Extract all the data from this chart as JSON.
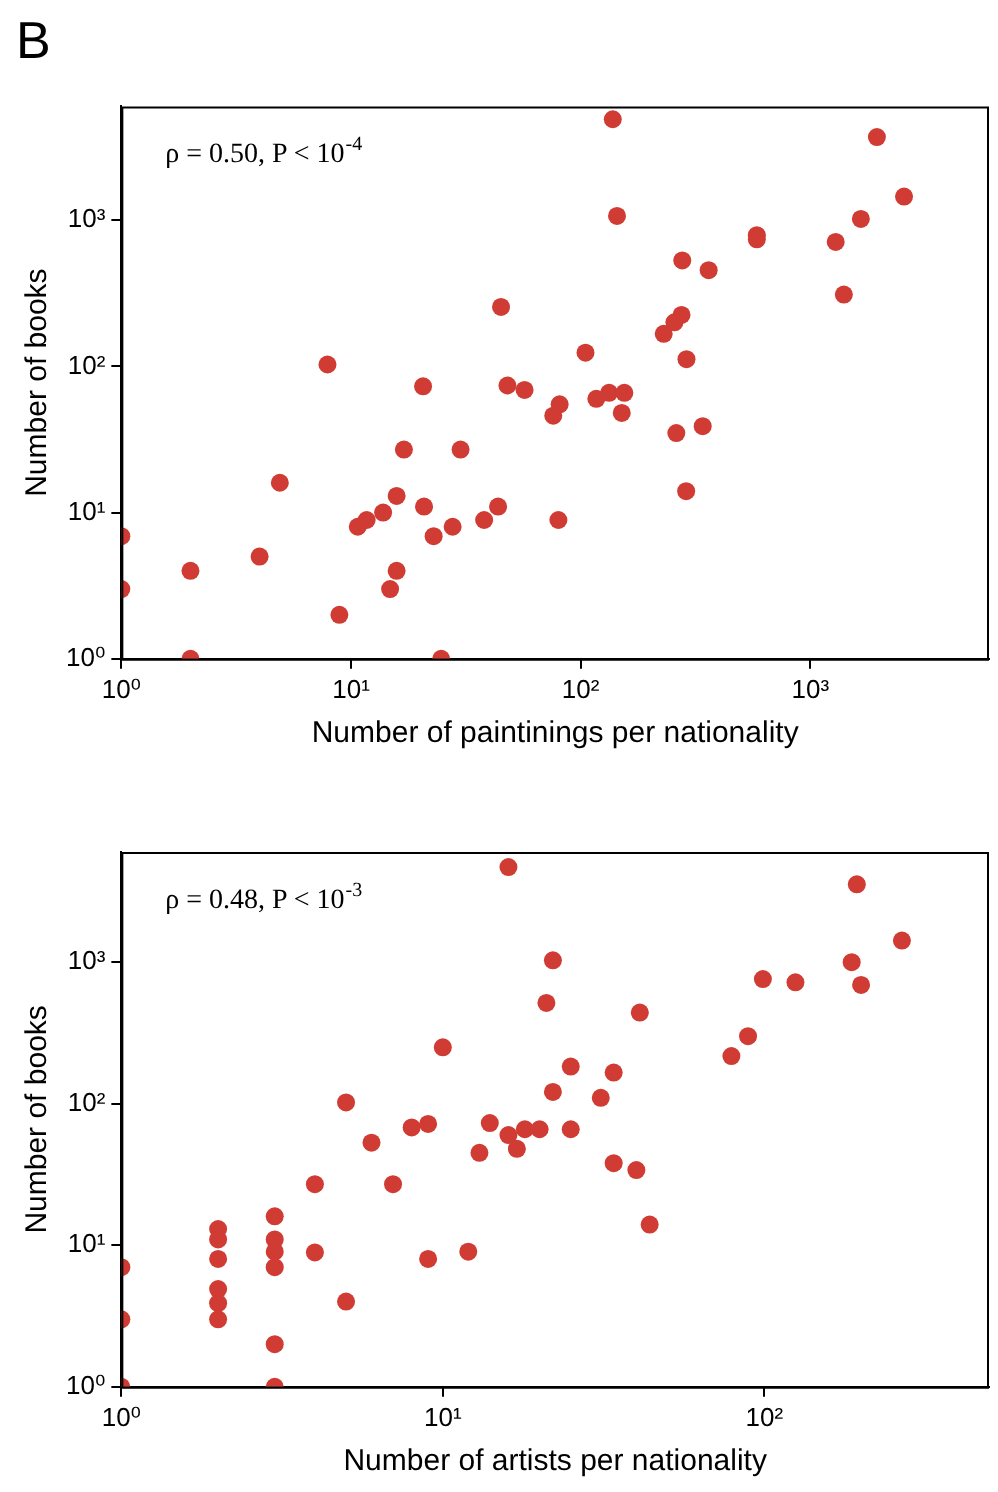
{
  "chart_data": [
    {
      "type": "scatter",
      "title": "B",
      "xlabel": "Number of paintinings per nationality",
      "ylabel": "Number of books",
      "annotations": [
        "ρ = 0.50, P < 10$^{-4}$"
      ],
      "log": "xy",
      "grid": false,
      "marker": "circle",
      "legend": false,
      "xlim": [
        1,
        6000
      ],
      "ylim": [
        1,
        6000
      ],
      "xticks": [
        {
          "value": 1,
          "label": "10⁰"
        },
        {
          "value": 10,
          "label": "10¹"
        },
        {
          "value": 100,
          "label": "10²"
        },
        {
          "value": 1000,
          "label": "10³"
        }
      ],
      "yticks": [
        {
          "value": 1,
          "label": "10⁰"
        },
        {
          "value": 10,
          "label": "10¹"
        },
        {
          "value": 100,
          "label": "10²"
        },
        {
          "value": 1000,
          "label": "10³"
        }
      ],
      "series": [
        {
          "color": "#d03b33",
          "x": [
            138,
            1950,
            2560,
            144,
            1660,
            585,
            585,
            1290,
            277,
            361,
            1400,
            45,
            275,
            256,
            230,
            7.9,
            105,
            289,
            20.6,
            48,
            57,
            117,
            133,
            155,
            81,
            76,
            151,
            261,
            340,
            288,
            4.9,
            17,
            30,
            15.8,
            20.8,
            43.7,
            13.8,
            11.7,
            10.7,
            38,
            80,
            27.7,
            22.9,
            1,
            4,
            2,
            15.8,
            1,
            14.8,
            8.9,
            2,
            24.7
          ],
          "values": [
            4900,
            3700,
            1450,
            1070,
            1020,
            790,
            740,
            710,
            530,
            455,
            310,
            255,
            225,
            200,
            167,
            103,
            124,
            112,
            73,
            74,
            69,
            60,
            66,
            66,
            55,
            46,
            48,
            35,
            39,
            14,
            16,
            27,
            27,
            13,
            11,
            11,
            10,
            8.9,
            8,
            8.9,
            8.9,
            8,
            6.9,
            6.9,
            5,
            4,
            4,
            3,
            3,
            2,
            1,
            1
          ]
        }
      ]
    },
    {
      "type": "scatter",
      "xlabel": "Number of artists per nationality",
      "ylabel": "Number of books",
      "annotations": [
        "ρ = 0.48, P < 10$^{-3}$"
      ],
      "log": "xy",
      "grid": false,
      "marker": "circle",
      "legend": false,
      "xlim": [
        1,
        500
      ],
      "ylim": [
        1,
        6000
      ],
      "xticks": [
        {
          "value": 1,
          "label": "10⁰"
        },
        {
          "value": 10,
          "label": "10¹"
        },
        {
          "value": 100,
          "label": "10²"
        }
      ],
      "yticks": [
        {
          "value": 1,
          "label": "10⁰"
        },
        {
          "value": 10,
          "label": "10¹"
        },
        {
          "value": 100,
          "label": "10²"
        },
        {
          "value": 1000,
          "label": "10³"
        }
      ],
      "series": [
        {
          "color": "#d03b33",
          "x": [
            16,
            194,
            268,
            22,
            187,
            99,
            125,
            200,
            21,
            41,
            89,
            79,
            10,
            25,
            34,
            22,
            31,
            5,
            14,
            9,
            8,
            18,
            20,
            25,
            16,
            17,
            13,
            6,
            34,
            40,
            4,
            7,
            44,
            3,
            2,
            2,
            3,
            3,
            3,
            4,
            9,
            12,
            2,
            1,
            2,
            2,
            2,
            5,
            1,
            3,
            1,
            3
          ],
          "values": [
            4700,
            3550,
            1420,
            1030,
            1000,
            760,
            720,
            690,
            515,
            440,
            300,
            217,
            250,
            183,
            166,
            121,
            110,
            102,
            73,
            72,
            68,
            66,
            66,
            66,
            60,
            48,
            45,
            53,
            38,
            34,
            27,
            27,
            14,
            16,
            13,
            11,
            11,
            9,
            7,
            8.9,
            8,
            9,
            8,
            7,
            4.9,
            3.9,
            3,
            4,
            3,
            2,
            1,
            1
          ]
        }
      ]
    }
  ]
}
